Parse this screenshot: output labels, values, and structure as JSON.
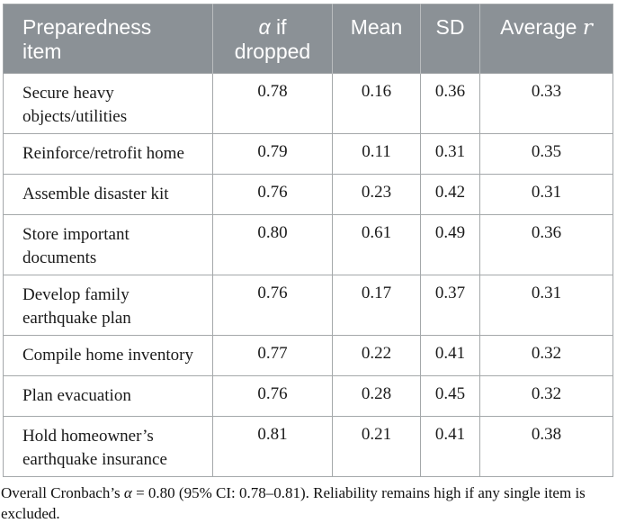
{
  "table": {
    "header": {
      "col_item": "Preparedness item",
      "col_alpha_sym": "α",
      "col_alpha_rest": " if",
      "col_alpha_line2": "dropped",
      "col_mean": "Mean",
      "col_sd": "SD",
      "col_avg_text": "Average ",
      "col_avg_sym": "r"
    },
    "rows": [
      {
        "item": "Secure heavy objects/utilities",
        "alpha_if_dropped": "0.78",
        "mean": "0.16",
        "sd": "0.36",
        "avg_r": "0.33"
      },
      {
        "item": "Reinforce/retrofit home",
        "alpha_if_dropped": "0.79",
        "mean": "0.11",
        "sd": "0.31",
        "avg_r": "0.35"
      },
      {
        "item": "Assemble disaster kit",
        "alpha_if_dropped": "0.76",
        "mean": "0.23",
        "sd": "0.42",
        "avg_r": "0.31"
      },
      {
        "item": "Store important documents",
        "alpha_if_dropped": "0.80",
        "mean": "0.61",
        "sd": "0.49",
        "avg_r": "0.36"
      },
      {
        "item": "Develop family earthquake plan",
        "alpha_if_dropped": "0.76",
        "mean": "0.17",
        "sd": "0.37",
        "avg_r": "0.31"
      },
      {
        "item": "Compile home inventory",
        "alpha_if_dropped": "0.77",
        "mean": "0.22",
        "sd": "0.41",
        "avg_r": "0.32"
      },
      {
        "item": "Plan evacuation",
        "alpha_if_dropped": "0.76",
        "mean": "0.28",
        "sd": "0.45",
        "avg_r": "0.32"
      },
      {
        "item": "Hold homeowner’s earthquake insurance",
        "alpha_if_dropped": "0.81",
        "mean": "0.21",
        "sd": "0.41",
        "avg_r": "0.38"
      }
    ]
  },
  "footnote": {
    "pre": "Overall Cronbach’s ",
    "alpha_sym": "α",
    "post": " = 0.80 (95% CI: 0.78–0.81). Reliability remains high if any single item is excluded."
  },
  "colors": {
    "header_bg": "#8b9196",
    "header_text": "#ffffff",
    "header_divider": "#b9bcbe",
    "body_border": "#a4a8aa",
    "body_text": "#1a1a1a"
  }
}
